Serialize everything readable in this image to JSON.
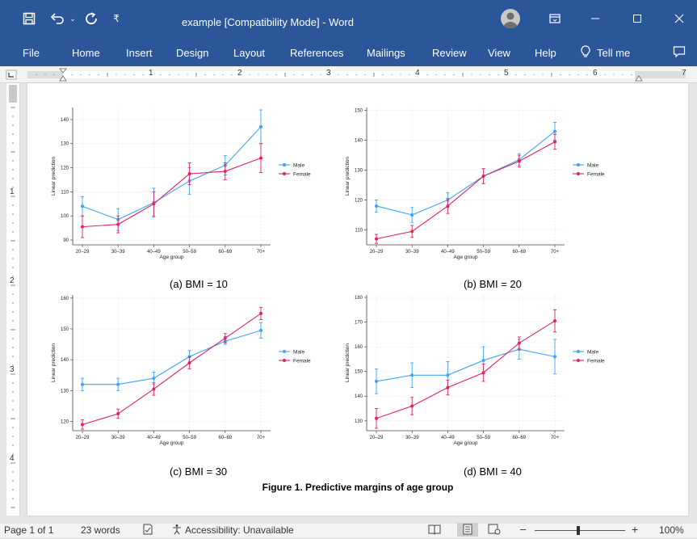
{
  "window": {
    "title": "example [Compatibility Mode]  -  Word",
    "accent_color": "#2b579a",
    "quick_access": [
      "save-icon",
      "undo-icon",
      "redo-icon",
      "customize-icon"
    ],
    "controls": [
      "ribbon-display-icon",
      "minimize-icon",
      "maximize-icon",
      "close-icon"
    ]
  },
  "menu": {
    "items": [
      "File",
      "Home",
      "Insert",
      "Design",
      "Layout",
      "References",
      "Mailings",
      "Review",
      "View",
      "Help"
    ],
    "tell_me": "Tell me"
  },
  "ruler": {
    "h_numbers": [
      "1",
      "2",
      "3",
      "4",
      "5",
      "6",
      "7"
    ],
    "v_numbers": [
      "1",
      "2",
      "3",
      "4"
    ]
  },
  "colors": {
    "male": "#3fa2f7",
    "female": "#e0245e"
  },
  "document": {
    "figure_title": "Figure 1. Predictive margins of age group",
    "panels": [
      {
        "caption": "(a) BMI = 10"
      },
      {
        "caption": "(b) BMI = 20"
      },
      {
        "caption": "(c) BMI = 30"
      },
      {
        "caption": "(d) BMI = 40"
      }
    ]
  },
  "chart_data": [
    {
      "type": "line",
      "categories": [
        "20–29",
        "30–39",
        "40–49",
        "50–59",
        "60–69",
        "70+"
      ],
      "xlabel": "Age group",
      "ylabel": "Linear prediction",
      "ylim": [
        88,
        145
      ],
      "yticks": [
        90,
        100,
        110,
        120,
        130,
        140
      ],
      "grid": true,
      "legend": "right",
      "series": [
        {
          "name": "Male",
          "values": [
            104,
            98.5,
            105.5,
            114.5,
            121,
            137
          ],
          "ci": [
            [
              100,
              108
            ],
            [
              94,
              103
            ],
            [
              99.5,
              111.5
            ],
            [
              109,
              120
            ],
            [
              117,
              125
            ],
            [
              130,
              144
            ]
          ]
        },
        {
          "name": "Female",
          "values": [
            95.5,
            96.5,
            105,
            117.5,
            118.5,
            124
          ],
          "ci": [
            [
              91,
              100
            ],
            [
              93,
              100
            ],
            [
              100,
              110
            ],
            [
              113,
              122
            ],
            [
              115,
              122
            ],
            [
              118,
              130
            ]
          ]
        }
      ]
    },
    {
      "type": "line",
      "categories": [
        "20–29",
        "30–39",
        "40–49",
        "50–59",
        "60–69",
        "70+"
      ],
      "xlabel": "Age group",
      "ylabel": "Linear prediction",
      "ylim": [
        105,
        151
      ],
      "yticks": [
        110,
        120,
        130,
        140,
        150
      ],
      "grid": true,
      "legend": "right",
      "series": [
        {
          "name": "Male",
          "values": [
            118,
            115,
            120,
            128,
            133.5,
            143
          ],
          "ci": [
            [
              116,
              120
            ],
            [
              112.5,
              117.5
            ],
            [
              117.5,
              122.5
            ],
            [
              125.5,
              130.5
            ],
            [
              131.5,
              135.5
            ],
            [
              140,
              146
            ]
          ]
        },
        {
          "name": "Female",
          "values": [
            107,
            109.5,
            118,
            128,
            133,
            139.5
          ],
          "ci": [
            [
              105.5,
              108.5
            ],
            [
              107.5,
              111.5
            ],
            [
              115.5,
              120.5
            ],
            [
              125.5,
              130.5
            ],
            [
              131,
              135
            ],
            [
              137,
              142
            ]
          ]
        }
      ]
    },
    {
      "type": "line",
      "categories": [
        "20–29",
        "30–39",
        "40–49",
        "50–59",
        "60–69",
        "70+"
      ],
      "xlabel": "Age group",
      "ylabel": "Linear prediction",
      "ylim": [
        117,
        161
      ],
      "yticks": [
        120,
        130,
        140,
        150,
        160
      ],
      "grid": true,
      "legend": "right",
      "series": [
        {
          "name": "Male",
          "values": [
            132,
            132,
            134,
            141,
            146,
            149.5
          ],
          "ci": [
            [
              130,
              134
            ],
            [
              130,
              134
            ],
            [
              132,
              136
            ],
            [
              139,
              143
            ],
            [
              145,
              147.5
            ],
            [
              147,
              152
            ]
          ]
        },
        {
          "name": "Female",
          "values": [
            119,
            122.5,
            130.5,
            139,
            147,
            155
          ],
          "ci": [
            [
              117.5,
              120.5
            ],
            [
              121,
              124
            ],
            [
              128.5,
              132.5
            ],
            [
              137,
              141
            ],
            [
              145.5,
              148.5
            ],
            [
              153,
              157
            ]
          ]
        }
      ]
    },
    {
      "type": "line",
      "categories": [
        "20–29",
        "30–39",
        "40–49",
        "50–59",
        "60–69",
        "70+"
      ],
      "xlabel": "Age group",
      "ylabel": "Linear prediction",
      "ylim": [
        126,
        181
      ],
      "yticks": [
        130,
        140,
        150,
        160,
        170,
        180
      ],
      "grid": true,
      "legend": "right",
      "series": [
        {
          "name": "Male",
          "values": [
            146,
            148.5,
            148.5,
            154.5,
            159,
            156
          ],
          "ci": [
            [
              141,
              151
            ],
            [
              143.5,
              153.5
            ],
            [
              143,
              154
            ],
            [
              149,
              160
            ],
            [
              155,
              163
            ],
            [
              149,
              163
            ]
          ]
        },
        {
          "name": "Female",
          "values": [
            131,
            136,
            143.5,
            149.5,
            161.5,
            170.5
          ],
          "ci": [
            [
              127,
              135
            ],
            [
              132.5,
              139.5
            ],
            [
              140.5,
              146.5
            ],
            [
              146,
              153
            ],
            [
              159,
              164
            ],
            [
              166,
              175
            ]
          ]
        }
      ]
    }
  ],
  "status": {
    "page": "Page 1 of 1",
    "words": "23 words",
    "accessibility": "Accessibility: Unavailable",
    "zoom": "100%"
  }
}
